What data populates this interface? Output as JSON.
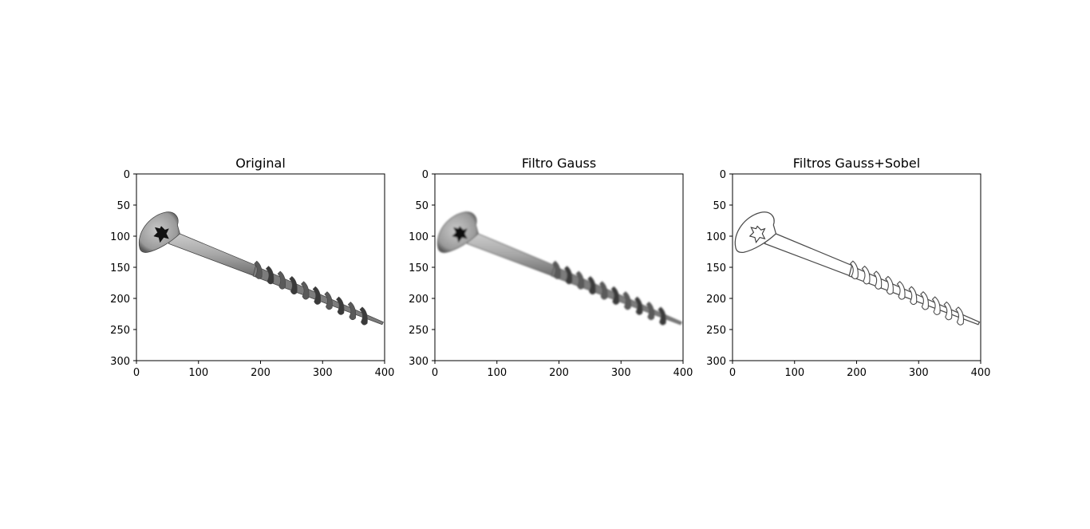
{
  "figure": {
    "panels": [
      {
        "title": "Original",
        "style": "original",
        "x_ticks": [
          "0",
          "100",
          "200",
          "300",
          "400"
        ],
        "y_ticks": [
          "0",
          "50",
          "100",
          "150",
          "200",
          "250",
          "300"
        ]
      },
      {
        "title": "Filtro Gauss",
        "style": "gauss",
        "x_ticks": [
          "0",
          "100",
          "200",
          "300",
          "400"
        ],
        "y_ticks": [
          "0",
          "50",
          "100",
          "150",
          "200",
          "250",
          "300"
        ]
      },
      {
        "title": "Filtros Gauss+Sobel",
        "style": "sobel",
        "x_ticks": [
          "0",
          "100",
          "200",
          "300",
          "400"
        ],
        "y_ticks": [
          "0",
          "50",
          "100",
          "150",
          "200",
          "250",
          "300"
        ]
      }
    ]
  },
  "chart_data": [
    {
      "type": "image",
      "title": "Original",
      "xlim": [
        0,
        400
      ],
      "ylim": [
        300,
        0
      ],
      "x_ticks": [
        0,
        100,
        200,
        300,
        400
      ],
      "y_ticks": [
        0,
        50,
        100,
        150,
        200,
        250,
        300
      ]
    },
    {
      "type": "image",
      "title": "Filtro Gauss",
      "xlim": [
        0,
        400
      ],
      "ylim": [
        300,
        0
      ],
      "x_ticks": [
        0,
        100,
        200,
        300,
        400
      ],
      "y_ticks": [
        0,
        50,
        100,
        150,
        200,
        250,
        300
      ]
    },
    {
      "type": "image",
      "title": "Filtros Gauss+Sobel",
      "xlim": [
        0,
        400
      ],
      "ylim": [
        300,
        0
      ],
      "x_ticks": [
        0,
        100,
        200,
        300,
        400
      ],
      "y_ticks": [
        0,
        50,
        100,
        150,
        200,
        250,
        300
      ]
    }
  ],
  "colors": {
    "background": "#ffffff",
    "axes": "#000000",
    "screw_light": "#b8b8b8",
    "screw_mid": "#8a8a8a",
    "screw_dark": "#2e2e2e",
    "sobel_line": "#555555"
  }
}
